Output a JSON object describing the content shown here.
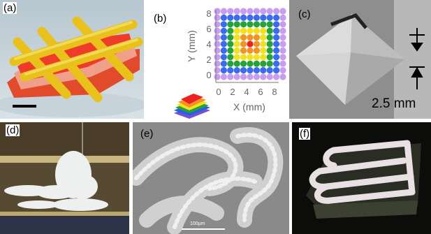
{
  "panels": {
    "a": {
      "label": "(a)"
    },
    "b": {
      "label": "(b)",
      "y_axis_label": "Y (mm)",
      "x_axis_label": "X (mm)",
      "x_ticks": [
        "0",
        "2",
        "4",
        "6",
        "8"
      ],
      "y_ticks": [
        "0",
        "2",
        "4",
        "6",
        "8"
      ],
      "ring_colors": [
        "#c89cf0",
        "#3a6cf2",
        "#23a338",
        "#f2e21e",
        "#f29326",
        "#ee2020"
      ]
    },
    "c": {
      "label": "(c)",
      "dimension_text": "2.5 mm"
    },
    "d": {
      "label": "(d)"
    },
    "e": {
      "label": "(e)",
      "scale_bar_text": "100µm"
    },
    "f": {
      "label": "(f)"
    }
  }
}
